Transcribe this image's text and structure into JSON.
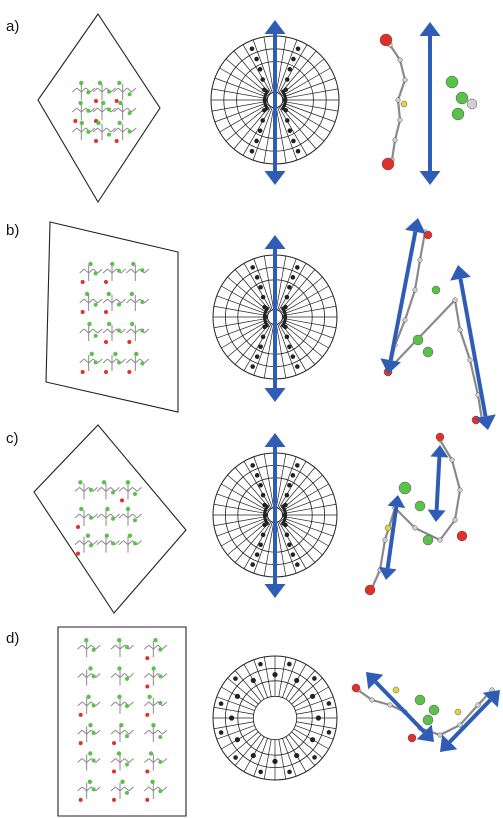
{
  "panels": [
    {
      "label": "a)",
      "cell_shape": "rhombus"
    },
    {
      "label": "b)",
      "cell_shape": "parallelogram"
    },
    {
      "label": "c)",
      "cell_shape": "rhombus"
    },
    {
      "label": "d)",
      "cell_shape": "rectangle"
    }
  ],
  "colors": {
    "arrow": "#2f5db5",
    "bond": "#8a8a8a",
    "fluorine": "#5ac24a",
    "oxygen": "#e0302a",
    "sulfur": "#e8d23a",
    "hydrogen": "#cfcfcf",
    "line": "#222222"
  },
  "icons": [
    "unit-cell-outline",
    "polar-stereographic-net",
    "dipole-arrow",
    "molecule-fragment"
  ]
}
